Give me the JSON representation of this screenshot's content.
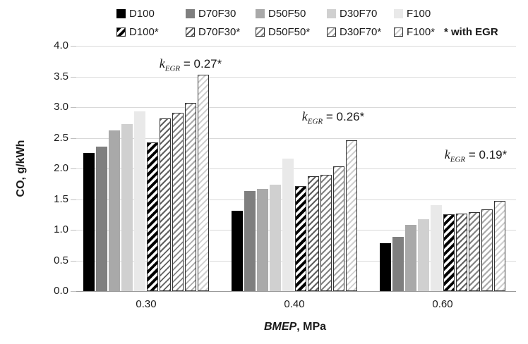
{
  "chart_data": {
    "type": "bar",
    "title": "",
    "ylabel": "CO, g/kWh",
    "xlabel": {
      "italic": "BMEP",
      "rest": ", MPa"
    },
    "categories": [
      "0.30",
      "0.40",
      "0.60"
    ],
    "ylim": [
      0,
      4.0
    ],
    "ytick_step": 0.5,
    "ytick_labels": [
      "4.0",
      "3.5",
      "3.0",
      "2.5",
      "2.0",
      "1.5",
      "1.0",
      "0.5",
      "0.0"
    ],
    "grid": true,
    "legend_position": "top",
    "legend_note": "* with EGR",
    "series": [
      {
        "name": "D100",
        "style": "solid",
        "color": "#000000",
        "values": [
          2.25,
          1.31,
          0.78
        ]
      },
      {
        "name": "D70F30",
        "style": "solid",
        "color": "#7f7f7f",
        "values": [
          2.36,
          1.63,
          0.88
        ]
      },
      {
        "name": "D50F50",
        "style": "solid",
        "color": "#a9a9a9",
        "values": [
          2.62,
          1.67,
          1.08
        ]
      },
      {
        "name": "D30F70",
        "style": "solid",
        "color": "#d0d0d0",
        "values": [
          2.72,
          1.73,
          1.17
        ]
      },
      {
        "name": "F100",
        "style": "solid",
        "color": "#e9e9e9",
        "values": [
          2.93,
          2.16,
          1.4
        ]
      },
      {
        "name": "D100*",
        "style": "hatch-heavy",
        "color": "#000000",
        "values": [
          2.43,
          1.71,
          1.25
        ]
      },
      {
        "name": "D70F30*",
        "style": "hatch",
        "color": "#5f5f5f",
        "values": [
          2.82,
          1.87,
          1.27
        ]
      },
      {
        "name": "D50F50*",
        "style": "hatch",
        "color": "#828282",
        "values": [
          2.91,
          1.9,
          1.29
        ]
      },
      {
        "name": "D30F70*",
        "style": "hatch",
        "color": "#a8a8a8",
        "values": [
          3.07,
          2.03,
          1.33
        ]
      },
      {
        "name": "F100*",
        "style": "hatch",
        "color": "#cfcfcf",
        "values": [
          3.53,
          2.46,
          1.47
        ]
      }
    ],
    "annotations": [
      {
        "var": "k",
        "sub": "EGR",
        "text": "= 0.27*",
        "group_index": 0
      },
      {
        "var": "k",
        "sub": "EGR",
        "text": "= 0.26*",
        "group_index": 1
      },
      {
        "var": "k",
        "sub": "EGR",
        "text": "= 0.19*",
        "group_index": 2
      }
    ]
  }
}
